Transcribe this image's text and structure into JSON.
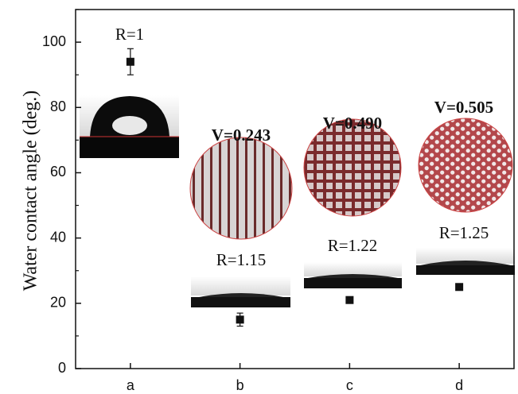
{
  "chart_data": {
    "type": "scatter",
    "y_label": "Water contact angle (deg.)",
    "categories": [
      "a",
      "b",
      "c",
      "d"
    ],
    "values": [
      94,
      15,
      21,
      25
    ],
    "errors": [
      4,
      2,
      1,
      0.5
    ],
    "color": "#111111",
    "ylim": [
      0,
      110
    ],
    "yticks": [
      0,
      20,
      40,
      60,
      80,
      100
    ],
    "yminorticks": [
      10,
      30,
      50,
      70,
      90,
      110
    ],
    "annotations": [
      "R=1",
      "V=0.243",
      "R=1.15",
      "V=0.490",
      "R=1.22",
      "V=0.505",
      "R=1.25"
    ]
  }
}
